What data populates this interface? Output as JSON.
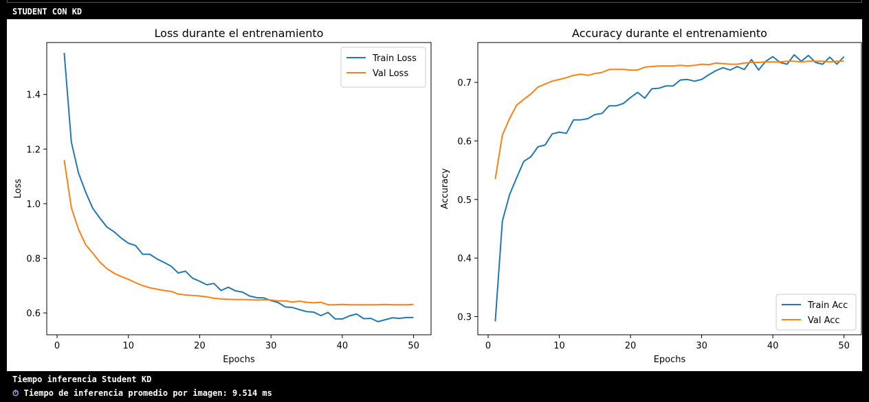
{
  "cell": {
    "header": "STUDENT CON KD",
    "output_lines": [
      "Tiempo inferencia Student KD",
      "Tiempo de inferencia promedio por imagen: 9.514 ms"
    ],
    "timer_icon": "timer-icon"
  },
  "colors": {
    "train": "#1f77b4",
    "val": "#ff7f0e"
  },
  "chart_data": [
    {
      "type": "line",
      "title": "Loss durante el entrenamiento",
      "xlabel": "Epochs",
      "ylabel": "Loss",
      "xlim": [
        -1.45,
        52.45
      ],
      "ylim": [
        0.52,
        1.59
      ],
      "xticks": [
        0,
        10,
        20,
        30,
        40,
        50
      ],
      "yticks": [
        0.6,
        0.8,
        1.0,
        1.2,
        1.4
      ],
      "ytick_labels": [
        "0.6",
        "0.8",
        "1.0",
        "1.2",
        "1.4"
      ],
      "legend": "top-right",
      "grid": false,
      "x": [
        1,
        2,
        3,
        4,
        5,
        6,
        7,
        8,
        9,
        10,
        11,
        12,
        13,
        14,
        15,
        16,
        17,
        18,
        19,
        20,
        21,
        22,
        23,
        24,
        25,
        26,
        27,
        28,
        29,
        30,
        31,
        32,
        33,
        34,
        35,
        36,
        37,
        38,
        39,
        40,
        41,
        42,
        43,
        44,
        45,
        46,
        47,
        48,
        49,
        50
      ],
      "series": [
        {
          "name": "Train Loss",
          "color": "#1f77b4",
          "values": [
            1.552,
            1.225,
            1.112,
            1.043,
            0.983,
            0.947,
            0.914,
            0.897,
            0.874,
            0.855,
            0.847,
            0.815,
            0.815,
            0.798,
            0.785,
            0.771,
            0.746,
            0.753,
            0.727,
            0.716,
            0.703,
            0.708,
            0.682,
            0.694,
            0.681,
            0.676,
            0.662,
            0.656,
            0.655,
            0.645,
            0.638,
            0.622,
            0.62,
            0.612,
            0.605,
            0.603,
            0.59,
            0.602,
            0.578,
            0.578,
            0.589,
            0.596,
            0.579,
            0.58,
            0.568,
            0.575,
            0.582,
            0.58,
            0.583,
            0.583
          ]
        },
        {
          "name": "Val Loss",
          "color": "#ff7f0e",
          "values": [
            1.16,
            0.985,
            0.906,
            0.85,
            0.819,
            0.786,
            0.762,
            0.745,
            0.733,
            0.723,
            0.711,
            0.7,
            0.692,
            0.687,
            0.682,
            0.679,
            0.669,
            0.666,
            0.664,
            0.662,
            0.659,
            0.654,
            0.651,
            0.65,
            0.649,
            0.649,
            0.648,
            0.647,
            0.648,
            0.647,
            0.644,
            0.644,
            0.64,
            0.643,
            0.639,
            0.637,
            0.639,
            0.63,
            0.63,
            0.631,
            0.63,
            0.63,
            0.63,
            0.63,
            0.63,
            0.631,
            0.63,
            0.63,
            0.63,
            0.631
          ]
        }
      ]
    },
    {
      "type": "line",
      "title": "Accuracy durante el entrenamiento",
      "xlabel": "Epochs",
      "ylabel": "Accuracy",
      "xlim": [
        -1.45,
        52.45
      ],
      "ylim": [
        0.269,
        0.768
      ],
      "xticks": [
        0,
        10,
        20,
        30,
        40,
        50
      ],
      "yticks": [
        0.3,
        0.4,
        0.5,
        0.6,
        0.7
      ],
      "ytick_labels": [
        "0.3",
        "0.4",
        "0.5",
        "0.6",
        "0.7"
      ],
      "legend": "bottom-right",
      "grid": false,
      "x": [
        1,
        2,
        3,
        4,
        5,
        6,
        7,
        8,
        9,
        10,
        11,
        12,
        13,
        14,
        15,
        16,
        17,
        18,
        19,
        20,
        21,
        22,
        23,
        24,
        25,
        26,
        27,
        28,
        29,
        30,
        31,
        32,
        33,
        34,
        35,
        36,
        37,
        38,
        39,
        40,
        41,
        42,
        43,
        44,
        45,
        46,
        47,
        48,
        49,
        50
      ],
      "series": [
        {
          "name": "Train Acc",
          "color": "#1f77b4",
          "values": [
            0.292,
            0.463,
            0.508,
            0.537,
            0.565,
            0.573,
            0.59,
            0.593,
            0.612,
            0.615,
            0.613,
            0.636,
            0.636,
            0.638,
            0.645,
            0.647,
            0.66,
            0.66,
            0.664,
            0.674,
            0.683,
            0.673,
            0.689,
            0.69,
            0.694,
            0.694,
            0.704,
            0.705,
            0.702,
            0.705,
            0.713,
            0.72,
            0.725,
            0.721,
            0.727,
            0.722,
            0.739,
            0.721,
            0.736,
            0.744,
            0.734,
            0.731,
            0.747,
            0.736,
            0.746,
            0.734,
            0.731,
            0.743,
            0.731,
            0.744
          ]
        },
        {
          "name": "Val Acc",
          "color": "#ff7f0e",
          "values": [
            0.535,
            0.61,
            0.638,
            0.661,
            0.671,
            0.68,
            0.692,
            0.697,
            0.702,
            0.705,
            0.708,
            0.712,
            0.714,
            0.712,
            0.715,
            0.717,
            0.722,
            0.722,
            0.722,
            0.721,
            0.721,
            0.726,
            0.727,
            0.728,
            0.728,
            0.728,
            0.729,
            0.728,
            0.729,
            0.731,
            0.73,
            0.733,
            0.732,
            0.731,
            0.731,
            0.733,
            0.734,
            0.734,
            0.735,
            0.735,
            0.735,
            0.736,
            0.736,
            0.735,
            0.736,
            0.736,
            0.736,
            0.735,
            0.736,
            0.736
          ]
        }
      ]
    }
  ]
}
